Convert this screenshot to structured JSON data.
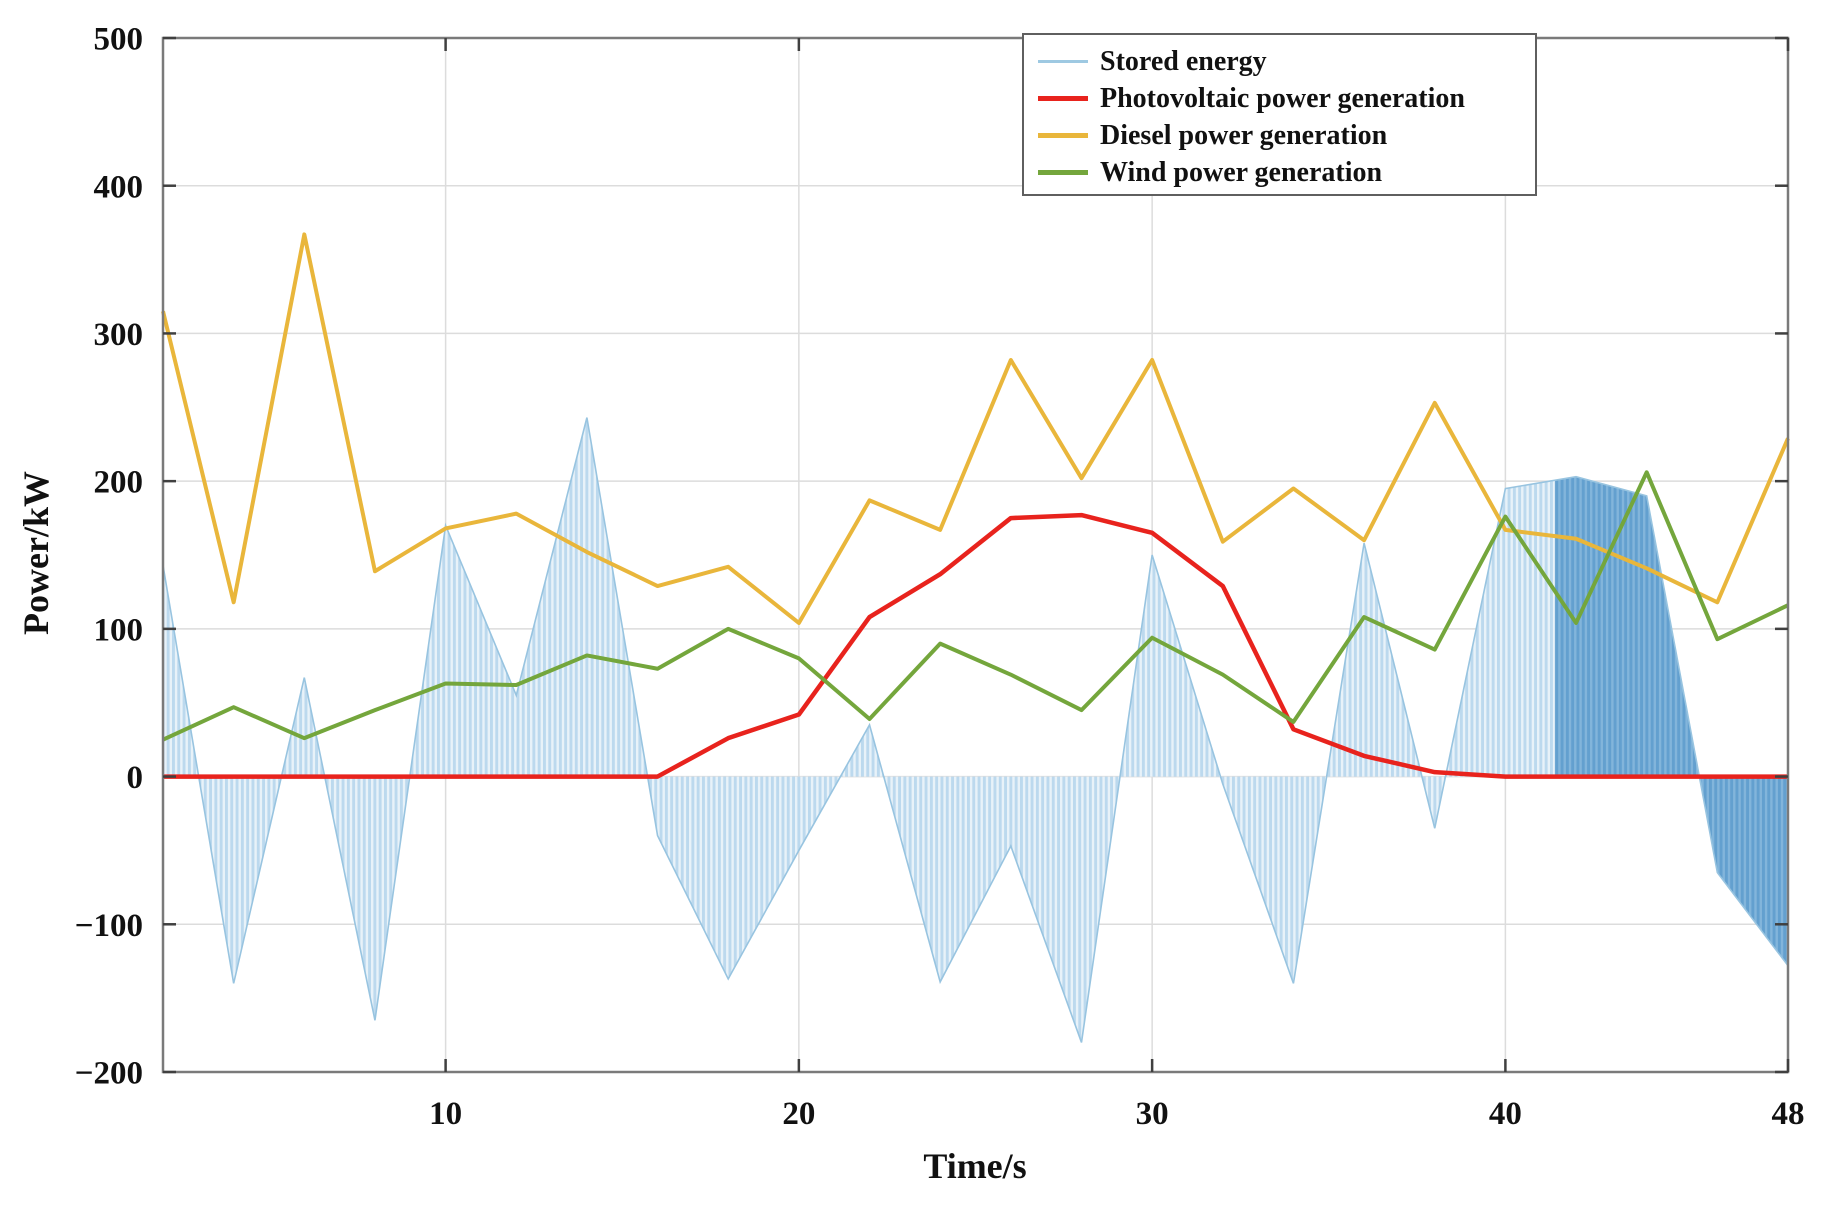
{
  "chart_data": {
    "type": "area+line",
    "xlabel": "Time/s",
    "ylabel": "Power/kW",
    "xlim": [
      2,
      48
    ],
    "ylim": [
      -200,
      500
    ],
    "x_ticks": [
      10,
      20,
      30,
      40,
      48
    ],
    "y_ticks": [
      -200,
      -100,
      0,
      100,
      200,
      300,
      400,
      500
    ],
    "grid": true,
    "x": [
      2,
      4,
      6,
      8,
      10,
      12,
      14,
      16,
      18,
      20,
      22,
      24,
      26,
      28,
      30,
      32,
      34,
      36,
      38,
      40,
      42,
      44,
      46,
      48
    ],
    "series": [
      {
        "name": "Stored energy",
        "type": "area",
        "legend_color": "#9ec9e2",
        "fill_color": "#bcd9ee",
        "stripe_color": "#e8f2f9",
        "edge_color": "#98c4e0",
        "dark_fill_color": "#63a0cf",
        "dark_stripe_color": "#82b5db",
        "dark_from_x": 41.4,
        "values": [
          143,
          -140,
          67,
          -165,
          170,
          55,
          243,
          -40,
          -137,
          -50,
          35,
          -139,
          -47,
          -180,
          150,
          -5,
          -140,
          158,
          -35,
          195,
          203,
          190,
          -65,
          -128
        ]
      },
      {
        "name": "Photovoltaic power generation",
        "type": "line",
        "legend_color": "#e8231d",
        "color": "#e8231d",
        "values": [
          0,
          0,
          0,
          0,
          0,
          0,
          0,
          0,
          26,
          42,
          108,
          137,
          175,
          177,
          165,
          129,
          32,
          14,
          3,
          0,
          0,
          0,
          0,
          0
        ]
      },
      {
        "name": "Diesel power generation",
        "type": "line",
        "legend_color": "#e9b63b",
        "color": "#e9b63b",
        "values": [
          315,
          118,
          367,
          139,
          168,
          178,
          152,
          129,
          142,
          104,
          187,
          167,
          282,
          202,
          282,
          159,
          195,
          160,
          253,
          167,
          161,
          141,
          118,
          229
        ]
      },
      {
        "name": "Wind power generation",
        "type": "line",
        "legend_color": "#74a63c",
        "color": "#74a63c",
        "values": [
          25,
          47,
          26,
          45,
          63,
          62,
          82,
          73,
          100,
          80,
          39,
          90,
          69,
          45,
          94,
          69,
          37,
          108,
          86,
          176,
          104,
          206,
          93,
          116
        ]
      }
    ],
    "legend_position": "top-right",
    "colors": {
      "frame": "#7a7a7a",
      "grid": "#dcdcdc",
      "tick": "#404040",
      "text": "#111111"
    }
  }
}
